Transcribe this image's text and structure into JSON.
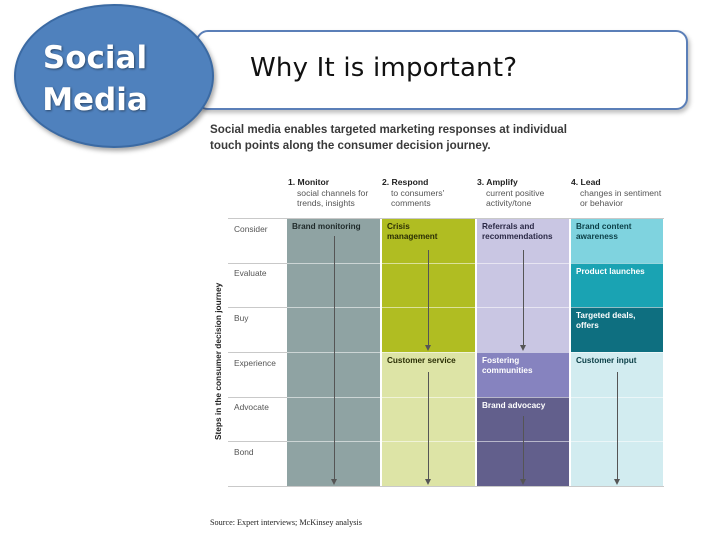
{
  "slide": {
    "title": "Why It is important?",
    "badge_line1": "Social",
    "badge_line2": "Media"
  },
  "colors": {
    "badge": "#4f81bd",
    "title_border": "#5b7fb8",
    "monitor": "#8fa3a3",
    "respond_strong": "#b0bd22",
    "respond_light": "#dde4a6",
    "amplify_light": "#c9c6e3",
    "amplify_mid": "#8683bf",
    "amplify_dark": "#625f8c",
    "lead_light": "#d2ecf0",
    "lead_bright": "#7fd3df",
    "lead_teal": "#1aa3b3",
    "lead_dark": "#0e6f80"
  },
  "figure": {
    "headline_line1": "Social media enables targeted marketing responses at individual",
    "headline_line2": "touch points along the consumer decision journey.",
    "axis_label": "Steps in the consumer decision journey",
    "steps": [
      {
        "title": "1. Monitor",
        "desc1": "social channels for",
        "desc2": "trends, insights"
      },
      {
        "title": "2. Respond",
        "desc1": "to consumers'",
        "desc2": "comments"
      },
      {
        "title": "3. Amplify",
        "desc1": "current positive",
        "desc2": "activity/tone"
      },
      {
        "title": "4. Lead",
        "desc1": "changes in sentiment",
        "desc2": "or behavior"
      }
    ],
    "rows": [
      "Consider",
      "Evaluate",
      "Buy",
      "Experience",
      "Advocate",
      "Bond"
    ],
    "cells": {
      "brand_monitoring": "Brand monitoring",
      "crisis_management_1": "Crisis",
      "crisis_management_2": "management",
      "referrals_1": "Referrals and",
      "referrals_2": "recommendations",
      "brand_content_1": "Brand content",
      "brand_content_2": "awareness",
      "product_launches": "Product launches",
      "targeted_deals_1": "Targeted deals,",
      "targeted_deals_2": "offers",
      "customer_service": "Customer service",
      "fostering_1": "Fostering",
      "fostering_2": "communities",
      "customer_input": "Customer input",
      "brand_advocacy": "Brand advocacy"
    },
    "source": "Source: Expert interviews; McKinsey analysis"
  }
}
